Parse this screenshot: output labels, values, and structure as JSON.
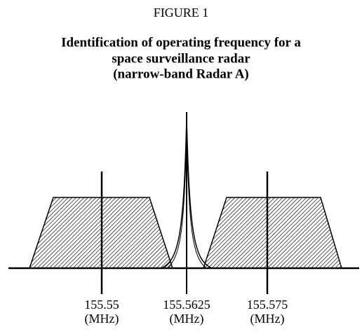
{
  "figure_label": "FIGURE 1",
  "title": [
    "Identification of operating frequency for a",
    "space surveillance radar",
    "(narrow-band Radar A)"
  ],
  "frequencies": [
    {
      "value": "155.55",
      "unit": "(MHz)"
    },
    {
      "value": "155.5625",
      "unit": "(MHz)"
    },
    {
      "value": "155.575",
      "unit": "(MHz)"
    }
  ]
}
